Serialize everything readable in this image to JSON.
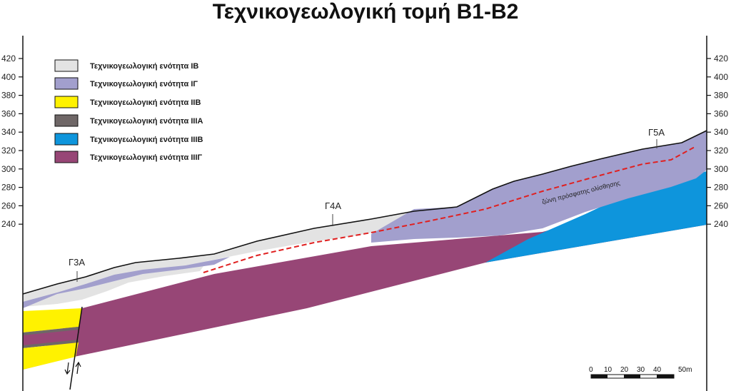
{
  "title": "Τεχνικογεωλογική τομή Β1-Β2",
  "legend": [
    {
      "label": "Τεχνικογεωλογική ενότητα ΙΒ",
      "color": "#e3e3e3"
    },
    {
      "label": "Τεχνικογεωλογική ενότητα ΙΓ",
      "color": "#a29fcd"
    },
    {
      "label": "Τεχνικογεωλογική ενότητα ΙΙΒ",
      "color": "#fff200"
    },
    {
      "label": "Τεχνικογεωλογική ενότητα ΙΙΙΑ",
      "color": "#6f6767"
    },
    {
      "label": "Τεχνικογεωλογική ενότητα ΙΙΙΒ",
      "color": "#0e95dc"
    },
    {
      "label": "Τεχνικογεωλογική ενότητα ΙΙΙΓ",
      "color": "#974676"
    }
  ],
  "elevation_ticks": [
    "420",
    "400",
    "380",
    "360",
    "340",
    "320",
    "300",
    "280",
    "260",
    "240"
  ],
  "boreholes": [
    "Γ3Α",
    "Γ4Α",
    "Γ5Α"
  ],
  "slip_zone_label": "ζώνη πρόσφατης ολίσθησης",
  "scale_bar": {
    "labels": [
      "0",
      "10",
      "20",
      "30",
      "40",
      "50m"
    ]
  },
  "colors": {
    "fault": "#111111",
    "slip_line": "#e02020",
    "surface": "#111111"
  }
}
